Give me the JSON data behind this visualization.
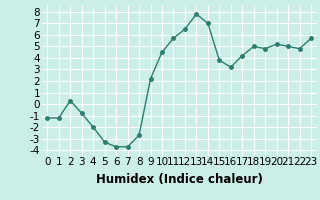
{
  "x": [
    0,
    1,
    2,
    3,
    4,
    5,
    6,
    7,
    8,
    9,
    10,
    11,
    12,
    13,
    14,
    15,
    16,
    17,
    18,
    19,
    20,
    21,
    22,
    23
  ],
  "y": [
    -1.2,
    -1.2,
    0.3,
    -0.8,
    -2.0,
    -3.3,
    -3.7,
    -3.7,
    -2.7,
    2.2,
    4.5,
    5.7,
    6.5,
    7.8,
    7.0,
    3.8,
    3.2,
    4.2,
    5.0,
    4.8,
    5.2,
    5.0,
    4.8,
    5.7
  ],
  "line_color": "#2e7d6e",
  "marker_color": "#2e7d6e",
  "bg_color": "#cceee8",
  "grid_color": "#ffffff",
  "xlabel": "Humidex (Indice chaleur)",
  "xlim": [
    -0.5,
    23.5
  ],
  "ylim": [
    -4.5,
    8.5
  ],
  "yticks": [
    -4,
    -3,
    -2,
    -1,
    0,
    1,
    2,
    3,
    4,
    5,
    6,
    7,
    8
  ],
  "xticks": [
    0,
    1,
    2,
    3,
    4,
    5,
    6,
    7,
    8,
    9,
    10,
    11,
    12,
    13,
    14,
    15,
    16,
    17,
    18,
    19,
    20,
    21,
    22,
    23
  ],
  "tick_label_fontsize": 7.5,
  "xlabel_fontsize": 8.5
}
